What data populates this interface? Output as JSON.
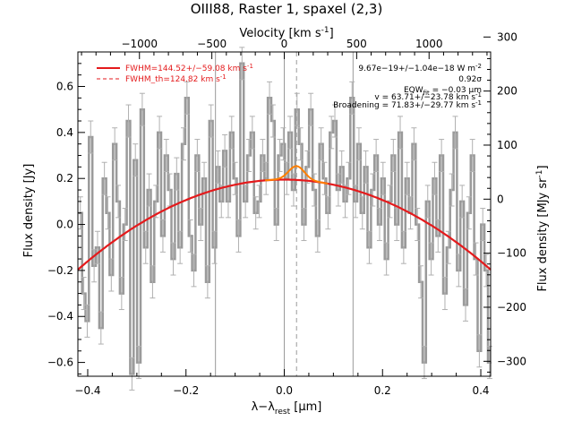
{
  "chart_data": {
    "type": "line",
    "title": "OIII88, Raster 1, spaxel (2,3)",
    "xlabel": "λ−λ",
    "xlabel_sub": "rest",
    "xlabel_unit": " [μm]",
    "ylabel": "Flux density [Jy]",
    "top_axis_label": "Velocity [km s",
    "top_axis_sup": "-1",
    "top_axis_close": "]",
    "right_axis_label": "Flux density [MJy sr",
    "right_axis_sup": "-1",
    "right_axis_close": "]",
    "xlim": [
      -0.42,
      0.42
    ],
    "ylim": [
      -0.66,
      0.75
    ],
    "x_ticks": [
      -0.4,
      -0.2,
      0.0,
      0.2,
      0.4
    ],
    "x_tick_labels": [
      "−0.4",
      "−0.2",
      "0.0",
      "0.2",
      "0.4"
    ],
    "y_ticks": [
      -0.6,
      -0.4,
      -0.2,
      0.0,
      0.2,
      0.4,
      0.6
    ],
    "y_tick_labels": [
      "−0.6",
      "−0.4",
      "−0.2",
      "0.0",
      "0.2",
      "0.4",
      "0.6"
    ],
    "top_ticks": [
      -1000,
      -500,
      0,
      500,
      1000
    ],
    "top_tick_labels": [
      "−1000",
      "−500",
      "0",
      "500",
      "1000"
    ],
    "right_ticks": [
      -300,
      -200,
      -100,
      0,
      100,
      200,
      300
    ],
    "right_tick_labels": [
      "−300",
      "−200",
      "−100",
      "0",
      "100",
      "200",
      "300"
    ],
    "legend": [
      {
        "text": "FWHM=144.52+/−59.08 km s",
        "sup": "-1",
        "color": "#e41a1c",
        "style": "solid"
      },
      {
        "text": "FWHM_th=124.82 km s",
        "sup": "-1",
        "color": "#e41a1c",
        "style": "dashed"
      }
    ],
    "annotations": [
      "9.67e−19+/−1.04e−18 W m",
      "0.92σ",
      "EQW",
      "v = 63.71+/−23.78 km s",
      "Broadening = 71.83+/−29.77 km s"
    ],
    "annotation_sup_w": "-2",
    "annotation_eqw_sub": "fit",
    "annotation_eqw_value": " = −0.03 μm",
    "annotation_sup_kms": "-1",
    "vertical_lines_solid": [
      -0.14,
      0.0,
      0.14
    ],
    "vertical_line_dashed": 0.025,
    "series": [
      {
        "name": "Data",
        "color": "#9a9a9a",
        "x": [
          -0.415,
          -0.408,
          -0.401,
          -0.394,
          -0.387,
          -0.38,
          -0.373,
          -0.366,
          -0.359,
          -0.352,
          -0.345,
          -0.338,
          -0.331,
          -0.324,
          -0.317,
          -0.31,
          -0.303,
          -0.296,
          -0.289,
          -0.282,
          -0.275,
          -0.268,
          -0.261,
          -0.254,
          -0.247,
          -0.24,
          -0.233,
          -0.226,
          -0.219,
          -0.212,
          -0.205,
          -0.198,
          -0.191,
          -0.184,
          -0.177,
          -0.17,
          -0.163,
          -0.156,
          -0.149,
          -0.142,
          -0.135,
          -0.128,
          -0.121,
          -0.114,
          -0.107,
          -0.1,
          -0.093,
          -0.086,
          -0.079,
          -0.072,
          -0.065,
          -0.058,
          -0.051,
          -0.044,
          -0.037,
          -0.03,
          -0.023,
          -0.016,
          -0.009,
          -0.002,
          0.005,
          0.012,
          0.019,
          0.026,
          0.033,
          0.04,
          0.047,
          0.054,
          0.061,
          0.068,
          0.075,
          0.082,
          0.089,
          0.096,
          0.103,
          0.11,
          0.117,
          0.124,
          0.131,
          0.138,
          0.145,
          0.152,
          0.159,
          0.166,
          0.173,
          0.18,
          0.187,
          0.194,
          0.201,
          0.208,
          0.215,
          0.222,
          0.229,
          0.236,
          0.243,
          0.25,
          0.257,
          0.264,
          0.271,
          0.278,
          0.285,
          0.292,
          0.299,
          0.306,
          0.313,
          0.32,
          0.327,
          0.334,
          0.341,
          0.348,
          0.355,
          0.362,
          0.369,
          0.376,
          0.383,
          0.39,
          0.397,
          0.404,
          0.411,
          0.418
        ],
        "y": [
          0.05,
          -0.3,
          -0.42,
          0.38,
          -0.18,
          -0.1,
          -0.45,
          0.2,
          0.05,
          -0.22,
          0.35,
          0.1,
          -0.3,
          0.0,
          0.45,
          -0.65,
          0.28,
          -0.6,
          0.5,
          -0.1,
          0.15,
          -0.25,
          0.1,
          0.4,
          -0.05,
          0.3,
          0.15,
          -0.15,
          0.22,
          -0.1,
          0.35,
          0.55,
          -0.05,
          -0.2,
          0.3,
          0.0,
          0.2,
          -0.25,
          0.45,
          -0.1,
          0.25,
          0.1,
          0.32,
          0.1,
          0.4,
          0.2,
          -0.05,
          0.7,
          0.1,
          0.3,
          0.4,
          0.05,
          0.1,
          0.3,
          0.2,
          0.55,
          0.45,
          0.0,
          0.3,
          0.35,
          0.2,
          0.4,
          0.15,
          0.5,
          0.35,
          0.0,
          0.25,
          0.5,
          0.15,
          -0.05,
          0.35,
          0.2,
          0.05,
          0.4,
          0.45,
          0.15,
          0.25,
          0.1,
          0.2,
          0.55,
          0.1,
          0.35,
          0.05,
          0.25,
          -0.1,
          0.15,
          0.3,
          0.0,
          0.2,
          -0.15,
          0.1,
          0.3,
          0.0,
          0.4,
          -0.1,
          0.2,
          0.05,
          0.35,
          0.0,
          -0.25,
          -0.6,
          0.1,
          -0.15,
          0.2,
          -0.05,
          0.3,
          -0.3,
          -0.1,
          0.15,
          0.4,
          -0.2,
          0.1,
          -0.35,
          0.05,
          0.3,
          -0.15,
          -0.55,
          0.0,
          -0.2,
          -0.6
        ]
      },
      {
        "name": "Baseline fit",
        "color": "#e41a1c",
        "model": "quadratic",
        "coefficients": [
          0.195,
          0.0,
          -2.22
        ]
      },
      {
        "name": "Line fit",
        "color": "#ff7f00",
        "model": "gaussian",
        "amplitude": 0.06,
        "center": 0.025,
        "sigma": 0.016
      }
    ],
    "errorbar": 0.07,
    "grid": false,
    "legend_position": "top-left"
  }
}
